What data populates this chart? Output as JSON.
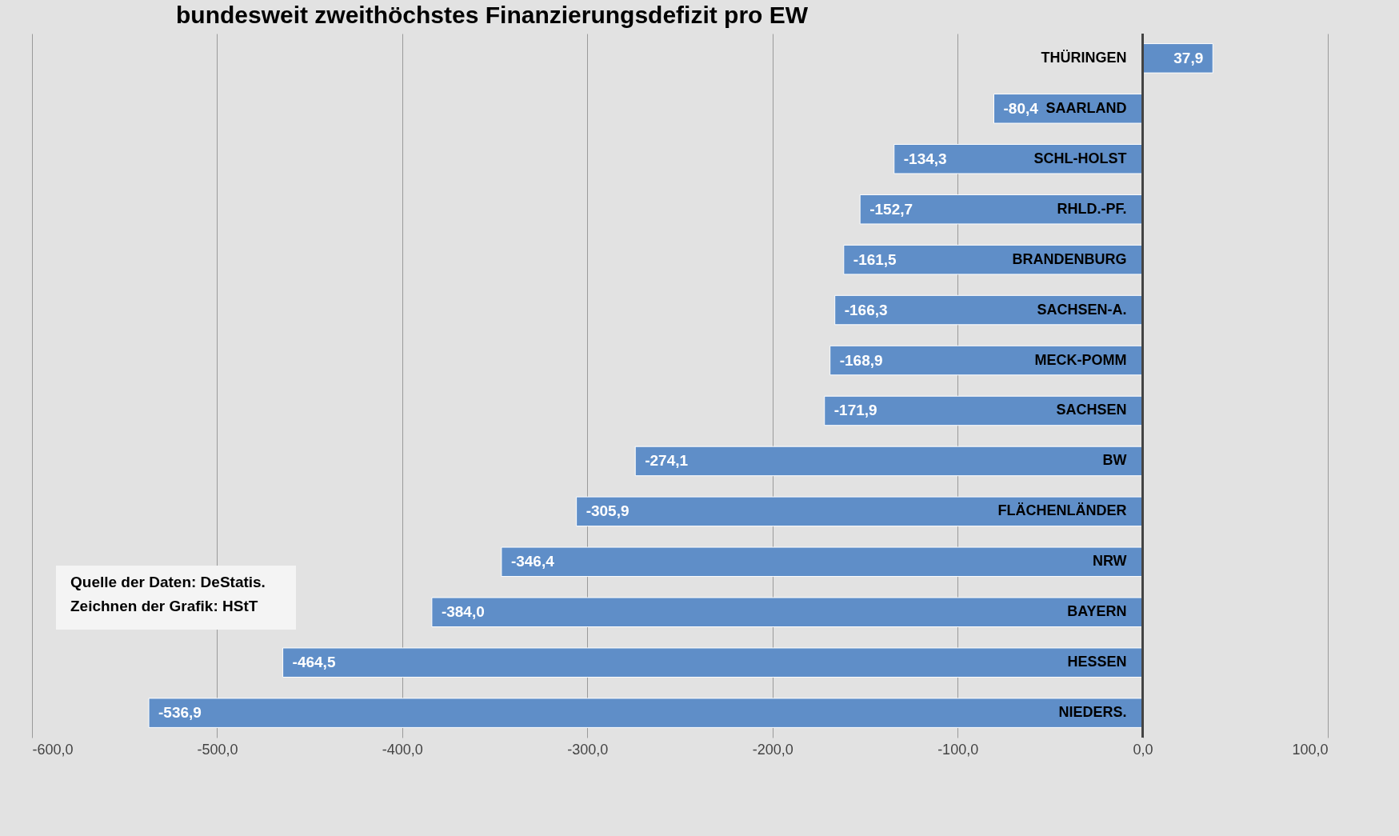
{
  "chart_data": {
    "type": "bar",
    "orientation": "horizontal",
    "title": "bundesweit zweithöchstes Finanzierungsdefizit pro EW",
    "categories": [
      "THÜRINGEN",
      "SAARLAND",
      "SCHL-HOLST",
      "RHLD.-PF.",
      "BRANDENBURG",
      "SACHSEN-A.",
      "MECK-POMM",
      "SACHSEN",
      "BW",
      "FLÄCHENLÄNDER",
      "NRW",
      "BAYERN",
      "HESSEN",
      "NIEDERS."
    ],
    "values": [
      37.9,
      -80.4,
      -134.3,
      -152.7,
      -161.5,
      -166.3,
      -168.9,
      -171.9,
      -274.1,
      -305.9,
      -346.4,
      -384.0,
      -464.5,
      -536.9
    ],
    "value_labels": [
      "37,9",
      "-80,4",
      "-134,3",
      "-152,7",
      "-161,5",
      "-166,3",
      "-168,9",
      "-171,9",
      "-274,1",
      "-305,9",
      "-346,4",
      "-384,0",
      "-464,5",
      "-536,9"
    ],
    "color": "#5f8ec8",
    "xlim": [
      -600,
      100
    ],
    "xticks": [
      {
        "value": -600,
        "label": "-600,0"
      },
      {
        "value": -500,
        "label": "-500,0"
      },
      {
        "value": -400,
        "label": "-400,0"
      },
      {
        "value": -300,
        "label": "-300,0"
      },
      {
        "value": -200,
        "label": "-200,0"
      },
      {
        "value": -100,
        "label": "-100,0"
      },
      {
        "value": 0,
        "label": "0,0"
      },
      {
        "value": 100,
        "label": "100,0"
      }
    ],
    "grid": "x",
    "annotations": [
      "Quelle der Daten: DeStatis.",
      "Zeichnen der Grafik: HStT"
    ]
  }
}
